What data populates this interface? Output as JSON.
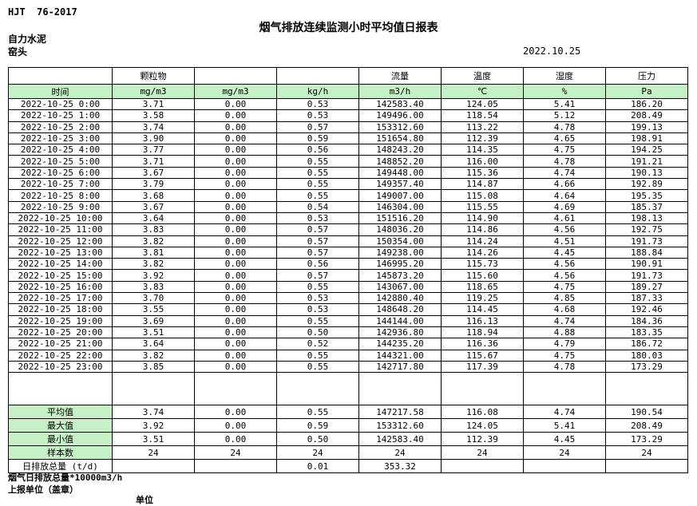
{
  "page": {
    "doc_code": "HJT  76-2017",
    "title": "烟气排放连续监测小时平均值日报表",
    "company": "自力水泥",
    "location": "窑头",
    "date": "2022.10.25"
  },
  "colors": {
    "highlight": "#c6f0c6",
    "border": "#000000"
  },
  "table": {
    "group_headers": [
      "",
      "颗粒物",
      "",
      "",
      "流量",
      "温度",
      "湿度",
      "压力"
    ],
    "unit_headers": [
      "时间",
      "mg/m3",
      "mg/m3",
      "kg/h",
      "m3/h",
      "℃",
      "%",
      "Pa"
    ],
    "rows": [
      [
        "2022-10-25 0:00",
        "3.71",
        "0.00",
        "0.53",
        "142583.40",
        "124.05",
        "5.41",
        "186.20"
      ],
      [
        "2022-10-25 1:00",
        "3.58",
        "0.00",
        "0.53",
        "149496.00",
        "118.54",
        "5.12",
        "208.49"
      ],
      [
        "2022-10-25 2:00",
        "3.74",
        "0.00",
        "0.57",
        "153312.60",
        "113.22",
        "4.78",
        "199.13"
      ],
      [
        "2022-10-25 3:00",
        "3.90",
        "0.00",
        "0.59",
        "151654.80",
        "112.39",
        "4.65",
        "198.91"
      ],
      [
        "2022-10-25 4:00",
        "3.77",
        "0.00",
        "0.56",
        "148243.20",
        "114.35",
        "4.75",
        "194.25"
      ],
      [
        "2022-10-25 5:00",
        "3.71",
        "0.00",
        "0.55",
        "148852.20",
        "116.00",
        "4.78",
        "191.21"
      ],
      [
        "2022-10-25 6:00",
        "3.67",
        "0.00",
        "0.55",
        "149448.00",
        "115.36",
        "4.74",
        "190.13"
      ],
      [
        "2022-10-25 7:00",
        "3.79",
        "0.00",
        "0.55",
        "149357.40",
        "114.87",
        "4.66",
        "192.89"
      ],
      [
        "2022-10-25 8:00",
        "3.68",
        "0.00",
        "0.55",
        "149007.00",
        "115.08",
        "4.64",
        "195.35"
      ],
      [
        "2022-10-25 9:00",
        "3.67",
        "0.00",
        "0.54",
        "146304.00",
        "115.55",
        "4.69",
        "185.37"
      ],
      [
        "2022-10-25 10:00",
        "3.64",
        "0.00",
        "0.53",
        "151516.20",
        "114.90",
        "4.61",
        "198.13"
      ],
      [
        "2022-10-25 11:00",
        "3.83",
        "0.00",
        "0.57",
        "148036.20",
        "114.86",
        "4.56",
        "192.75"
      ],
      [
        "2022-10-25 12:00",
        "3.82",
        "0.00",
        "0.57",
        "150354.00",
        "114.24",
        "4.51",
        "191.73"
      ],
      [
        "2022-10-25 13:00",
        "3.81",
        "0.00",
        "0.57",
        "149238.00",
        "114.26",
        "4.45",
        "188.84"
      ],
      [
        "2022-10-25 14:00",
        "3.82",
        "0.00",
        "0.56",
        "146995.20",
        "115.73",
        "4.56",
        "190.91"
      ],
      [
        "2022-10-25 15:00",
        "3.92",
        "0.00",
        "0.57",
        "145873.20",
        "115.60",
        "4.56",
        "191.73"
      ],
      [
        "2022-10-25 16:00",
        "3.83",
        "0.00",
        "0.55",
        "143067.00",
        "118.65",
        "4.75",
        "189.27"
      ],
      [
        "2022-10-25 17:00",
        "3.70",
        "0.00",
        "0.53",
        "142880.40",
        "119.25",
        "4.85",
        "187.33"
      ],
      [
        "2022-10-25 18:00",
        "3.55",
        "0.00",
        "0.53",
        "148648.20",
        "114.45",
        "4.68",
        "192.46"
      ],
      [
        "2022-10-25 19:00",
        "3.69",
        "0.00",
        "0.55",
        "144144.00",
        "116.13",
        "4.74",
        "184.36"
      ],
      [
        "2022-10-25 20:00",
        "3.51",
        "0.00",
        "0.50",
        "142936.80",
        "118.94",
        "4.88",
        "183.35"
      ],
      [
        "2022-10-25 21:00",
        "3.64",
        "0.00",
        "0.52",
        "144235.20",
        "116.36",
        "4.79",
        "186.72"
      ],
      [
        "2022-10-25 22:00",
        "3.82",
        "0.00",
        "0.55",
        "144321.00",
        "115.67",
        "4.75",
        "180.03"
      ],
      [
        "2022-10-25 23:00",
        "3.85",
        "0.00",
        "0.55",
        "142717.80",
        "117.39",
        "4.78",
        "173.29"
      ]
    ],
    "summary": [
      {
        "label": "平均值",
        "label_highlight": true,
        "values": [
          "3.74",
          "0.00",
          "0.55",
          "147217.58",
          "116.08",
          "4.74",
          "190.54"
        ]
      },
      {
        "label": "最大值",
        "label_highlight": true,
        "values": [
          "3.92",
          "0.00",
          "0.59",
          "153312.60",
          "124.05",
          "5.41",
          "208.49"
        ]
      },
      {
        "label": "最小值",
        "label_highlight": true,
        "values": [
          "3.51",
          "0.00",
          "0.50",
          "142583.40",
          "112.39",
          "4.45",
          "173.29"
        ]
      },
      {
        "label": "样本数",
        "label_highlight": true,
        "values": [
          "24",
          "24",
          "24",
          "24",
          "24",
          "24",
          "24"
        ]
      },
      {
        "label": "日排放总量 (t/d)",
        "label_highlight": false,
        "values": [
          "",
          "",
          "0.01",
          "353.32",
          "",
          "",
          ""
        ]
      }
    ]
  },
  "footer": {
    "note": "烟气日排放总量*10000m3/h",
    "report_unit_label": "上报单位（盖章）",
    "unit_label": "单位"
  }
}
